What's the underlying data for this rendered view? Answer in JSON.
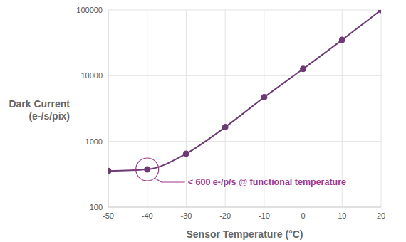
{
  "chart_data": {
    "type": "line",
    "x": [
      -50,
      -40,
      -30,
      -20,
      -10,
      0,
      10,
      20
    ],
    "values": [
      355,
      375,
      650,
      1650,
      4700,
      12700,
      35000,
      100000
    ],
    "color": "#6e3a75",
    "marker": "circle",
    "x_label": "Sensor Temperature (°C)",
    "y_label": "Dark Current\n(e-/s/pix)",
    "xlim": [
      -50,
      20
    ],
    "xticks": [
      -50,
      -40,
      -30,
      -20,
      -10,
      0,
      10,
      20
    ],
    "ylim": [
      100,
      100000
    ],
    "yticks": [
      100,
      1000,
      10000,
      100000
    ],
    "log": "y",
    "grid": true,
    "annotation": {
      "text": "< 600 e-/p/s @ functional temperature",
      "x": -40,
      "y": 375,
      "color": "#a3358c"
    }
  }
}
